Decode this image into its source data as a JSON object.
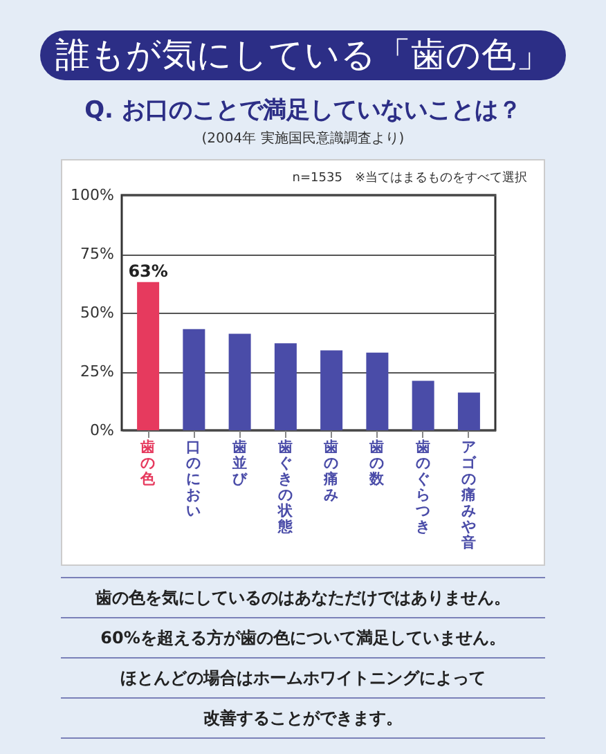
{
  "chart_data": {
    "type": "bar",
    "title": "誰もが気にしている「歯の色」",
    "subtitle": "Q. お口のことで満足していないことは？",
    "annotations": [
      "(2004年 実施国民意識調査より)",
      "n=1535　※当てはまるものをすべて選択",
      "歯の色を気にしているのはあなただけではありません。",
      "60%を超える方が歯の色について満足していません。",
      "ほとんどの場合はホームホワイトニングによって",
      "改善することができます。"
    ],
    "categories": [
      "歯の色",
      "口のにおい",
      "歯並び",
      "歯ぐきの状態",
      "歯の痛み",
      "歯の数",
      "歯のぐらつき",
      "アゴの痛みや音"
    ],
    "values": [
      63,
      43,
      41,
      37,
      34,
      33,
      21,
      16
    ],
    "colors": [
      "#e63a5e",
      "#4a4ca8",
      "#4a4ca8",
      "#4a4ca8",
      "#4a4ca8",
      "#4a4ca8",
      "#4a4ca8",
      "#4a4ca8"
    ],
    "value_labels": [
      "63%",
      null,
      null,
      null,
      null,
      null,
      null,
      null
    ],
    "ylim": [
      0,
      100
    ],
    "yticks": [
      {
        "value": 0,
        "label": "0%"
      },
      {
        "value": 25,
        "label": "25%"
      },
      {
        "value": 50,
        "label": "50%"
      },
      {
        "value": 75,
        "label": "75%"
      },
      {
        "value": 100,
        "label": "100%"
      }
    ],
    "grid": "y"
  }
}
